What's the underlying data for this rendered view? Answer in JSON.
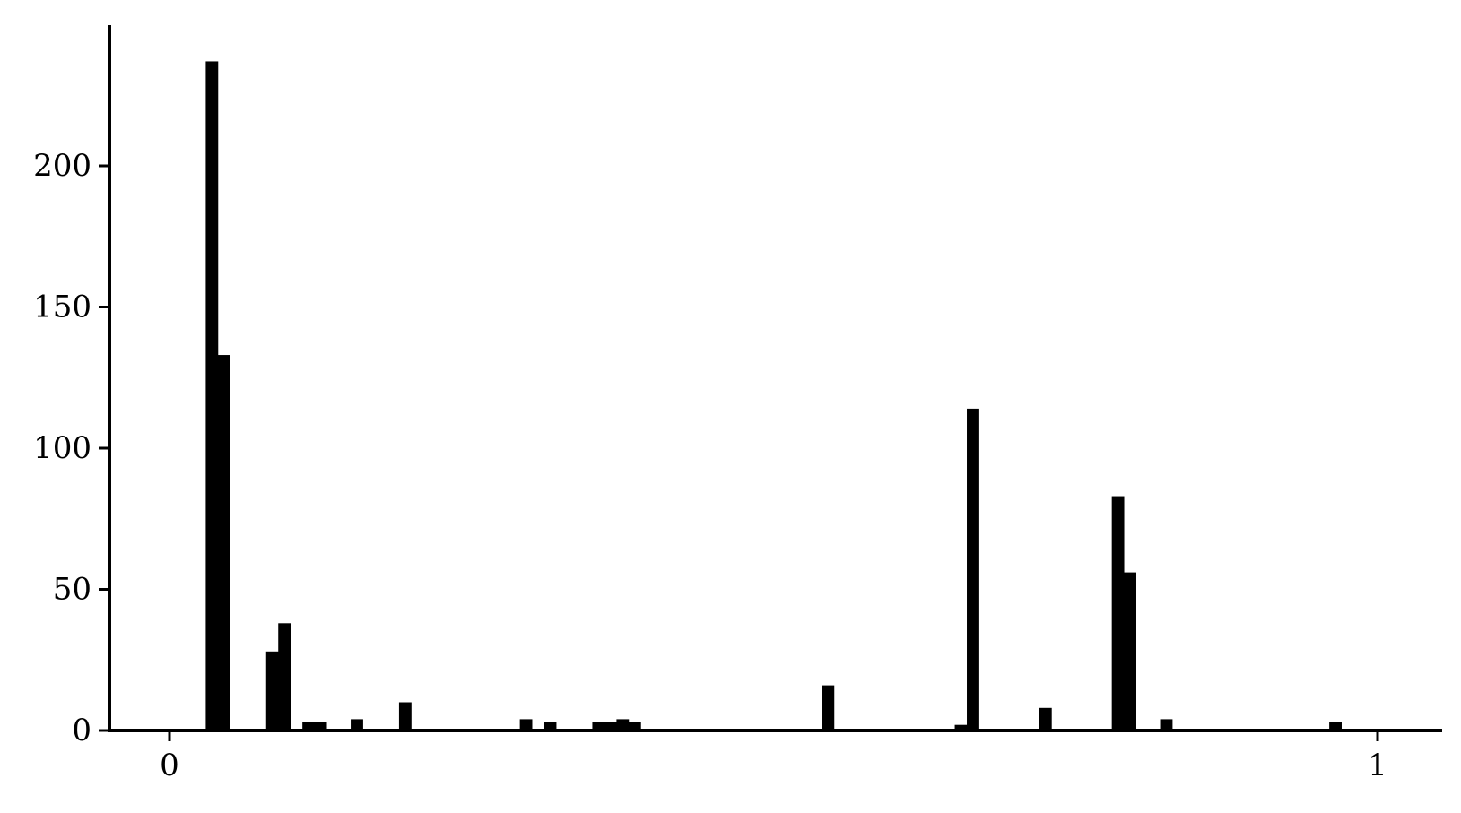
{
  "chart_data": {
    "type": "bar",
    "title": "",
    "xlabel": "",
    "ylabel": "",
    "xlim": [
      -0.05,
      1.05
    ],
    "ylim": [
      0,
      250
    ],
    "bin_width": 0.01,
    "bar_color": "#000000",
    "background": "#ffffff",
    "grid": false,
    "legend": "none",
    "x_ticks": [
      {
        "value": 0,
        "label": "0"
      },
      {
        "value": 1,
        "label": "1"
      }
    ],
    "y_ticks": [
      {
        "value": 0,
        "label": "0"
      },
      {
        "value": 50,
        "label": "50"
      },
      {
        "value": 100,
        "label": "100"
      },
      {
        "value": 150,
        "label": "150"
      },
      {
        "value": 200,
        "label": "200"
      }
    ],
    "bins": [
      {
        "x": 0.03,
        "y": 237
      },
      {
        "x": 0.04,
        "y": 133
      },
      {
        "x": 0.08,
        "y": 28
      },
      {
        "x": 0.09,
        "y": 38
      },
      {
        "x": 0.11,
        "y": 3
      },
      {
        "x": 0.12,
        "y": 3
      },
      {
        "x": 0.15,
        "y": 4
      },
      {
        "x": 0.19,
        "y": 10
      },
      {
        "x": 0.29,
        "y": 4
      },
      {
        "x": 0.31,
        "y": 3
      },
      {
        "x": 0.35,
        "y": 3
      },
      {
        "x": 0.36,
        "y": 3
      },
      {
        "x": 0.37,
        "y": 4
      },
      {
        "x": 0.38,
        "y": 3
      },
      {
        "x": 0.54,
        "y": 16
      },
      {
        "x": 0.65,
        "y": 2
      },
      {
        "x": 0.66,
        "y": 114
      },
      {
        "x": 0.72,
        "y": 8
      },
      {
        "x": 0.78,
        "y": 83
      },
      {
        "x": 0.79,
        "y": 56
      },
      {
        "x": 0.82,
        "y": 4
      },
      {
        "x": 0.96,
        "y": 3
      }
    ]
  }
}
